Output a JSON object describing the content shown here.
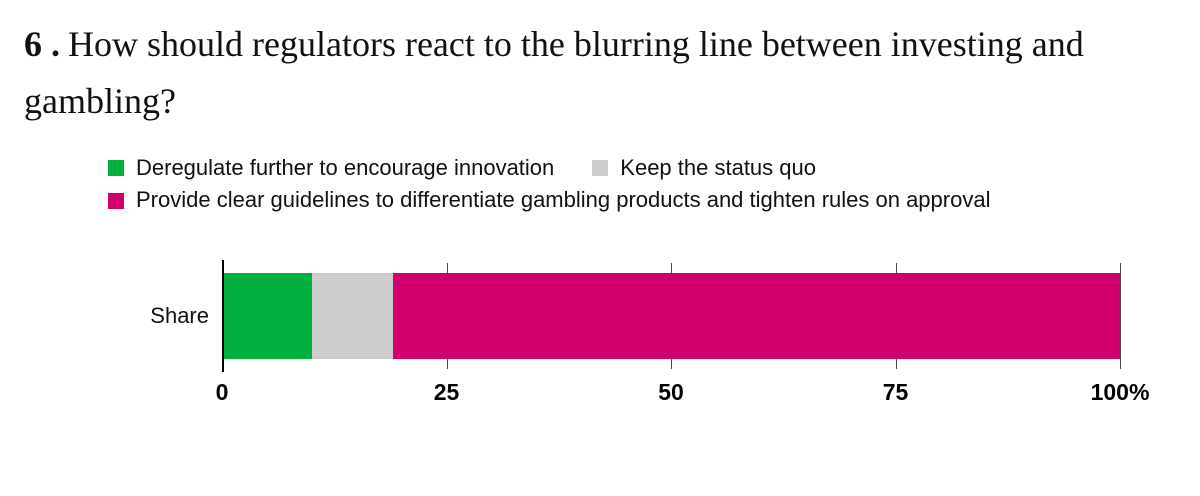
{
  "title": {
    "number": "6 .",
    "text": "How should regulators react to the blurring line between investing and gambling?"
  },
  "chart_data": {
    "type": "bar",
    "orientation": "horizontal",
    "stacked": true,
    "title": "6 . How should regulators react to the blurring line between investing and gambling?",
    "categories": [
      "Share"
    ],
    "series": [
      {
        "name": "Deregulate further to encourage innovation",
        "color": "#00b140",
        "values": [
          10
        ]
      },
      {
        "name": "Keep the status quo",
        "color": "#cccccc",
        "values": [
          9
        ]
      },
      {
        "name": "Provide clear guidelines to differentiate gambling products and tighten rules on approval",
        "color": "#d2006e",
        "values": [
          81
        ]
      }
    ],
    "xlabel": "",
    "ylabel": "",
    "xlim": [
      0,
      100
    ],
    "xticks": [
      0,
      25,
      50,
      75,
      100
    ],
    "xtick_labels": [
      "0",
      "25",
      "50",
      "75",
      "100%"
    ],
    "unit": "%",
    "legend_position": "top",
    "grid": "vertical-ticks"
  }
}
